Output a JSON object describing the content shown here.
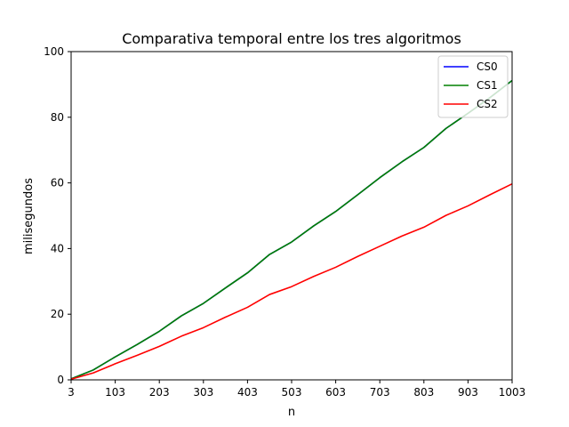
{
  "chart_data": {
    "type": "line",
    "title": "Comparativa temporal entre los tres algoritmos",
    "xlabel": "n",
    "ylabel": "milisegundos",
    "xlim": [
      3,
      1003
    ],
    "ylim": [
      0,
      100
    ],
    "x_ticks": [
      3,
      103,
      203,
      303,
      403,
      503,
      603,
      703,
      803,
      903,
      1003
    ],
    "y_ticks": [
      0,
      20,
      40,
      60,
      80,
      100
    ],
    "grid": false,
    "legend_position": "top-right",
    "x": [
      3,
      53,
      103,
      153,
      203,
      253,
      303,
      353,
      403,
      453,
      503,
      553,
      603,
      653,
      703,
      753,
      803,
      853,
      903,
      953,
      1003
    ],
    "series": [
      {
        "name": "CS0",
        "color": "#0000ff",
        "values": [
          0.3,
          3.0,
          7.0,
          10.8,
          14.8,
          19.5,
          23.3,
          28.0,
          32.6,
          38.2,
          42.0,
          46.9,
          51.3,
          56.4,
          61.6,
          66.4,
          70.8,
          76.6,
          81.2,
          86.0,
          91.2
        ]
      },
      {
        "name": "CS1",
        "color": "#008000",
        "values": [
          0.3,
          3.0,
          7.0,
          10.8,
          14.8,
          19.5,
          23.3,
          28.0,
          32.6,
          38.2,
          42.0,
          46.9,
          51.3,
          56.4,
          61.6,
          66.4,
          70.8,
          76.6,
          81.2,
          86.0,
          91.2
        ]
      },
      {
        "name": "CS2",
        "color": "#ff0000",
        "values": [
          0.2,
          2.1,
          4.9,
          7.5,
          10.2,
          13.3,
          15.9,
          19.1,
          22.1,
          26.0,
          28.4,
          31.5,
          34.3,
          37.6,
          40.7,
          43.8,
          46.5,
          50.1,
          53.0,
          56.4,
          59.7
        ]
      }
    ]
  }
}
